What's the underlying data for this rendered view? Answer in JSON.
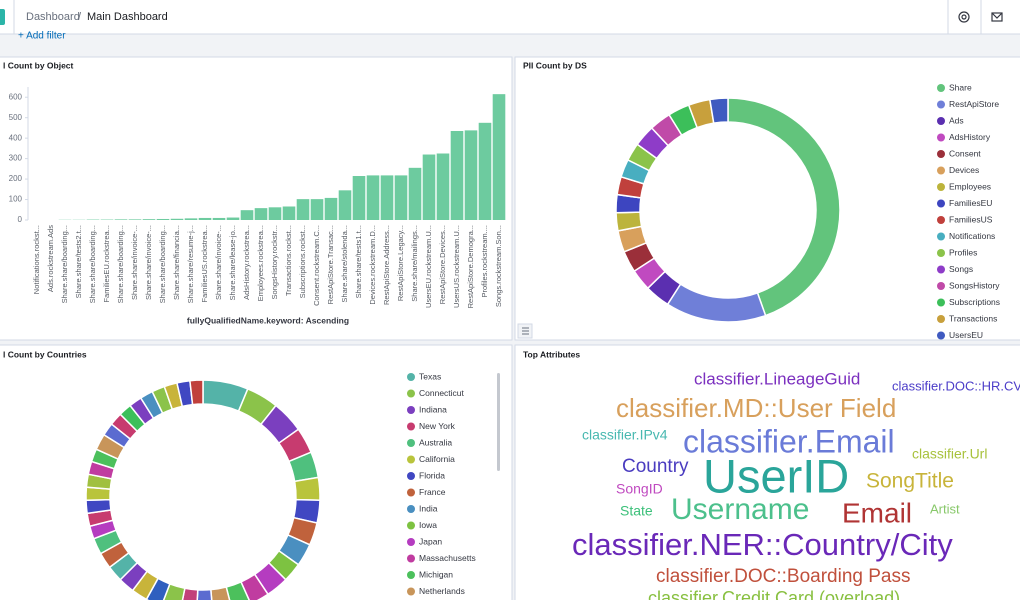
{
  "header": {
    "breadcrumbs": [
      "Dashboard",
      "Main Dashboard"
    ],
    "filter_link": "+ Add filter"
  },
  "chart_data": [
    {
      "type": "bar",
      "title": "l Count by Object",
      "x_label": "fullyQualifiedName.keyword: Ascending",
      "categories": [
        "Notifications.rockst...",
        "Ads.rockstream.Ads",
        "Share.share/boarding...",
        "Share.share/tests2.t...",
        "Share.share/boarding...",
        "FamiliesEU.rockstrea...",
        "Share.share/boarding...",
        "Share.share/invoice-...",
        "Share.share/invoice-...",
        "Share.share/boarding...",
        "Share.share/financia...",
        "Share.share/resume-j...",
        "FamiliesUS.rockstrea...",
        "Share.share/invoice-...",
        "Share.share/lease-jo...",
        "AdsHistory.rockstrea...",
        "Employees.rockstrea...",
        "SongsHistory.rockstr...",
        "Transactions.rockst...",
        "Subscriptions.rockst...",
        "Consent.rockstream.C...",
        "RestApiStore.Transac...",
        "Share.share/stolenda...",
        "Share.share/tests1.t...",
        "Devices.rockstream.D...",
        "RestApiStore.Address...",
        "RestApiStore.Legacy...",
        "Share.share/mailings...",
        "UsersEU.rockstream.U...",
        "RestApiStore.Devices...",
        "UsersUS.rockstream.U...",
        "RestApiStore.Demogra...",
        "Profiles.rockstream....",
        "Songs.rockstream.Son..."
      ],
      "values": [
        0,
        0,
        1,
        1,
        2,
        2,
        3,
        3,
        4,
        5,
        6,
        8,
        10,
        10,
        12,
        48,
        58,
        62,
        66,
        102,
        102,
        108,
        145,
        215,
        218,
        218,
        218,
        255,
        320,
        325,
        435,
        438,
        475,
        615
      ],
      "color": "#6dcb9f",
      "ylim": [
        0,
        650
      ],
      "yticks": [
        0,
        100,
        200,
        300,
        400,
        500,
        600
      ]
    },
    {
      "type": "donut",
      "title": "PII Count by DS",
      "categories": [
        "Share",
        "RestApiStore",
        "Ads",
        "AdsHistory",
        "Consent",
        "Devices",
        "Employees",
        "FamiliesEU",
        "FamiliesUS",
        "Notifications",
        "Profiles",
        "Songs",
        "SongsHistory",
        "Subscriptions",
        "Transactions",
        "UsersEU"
      ],
      "values": [
        43,
        14,
        3.5,
        3,
        3,
        3,
        2.5,
        2.5,
        2.5,
        2.5,
        2.5,
        3,
        3,
        3,
        3,
        2.5
      ],
      "colors": [
        "#62c47c",
        "#6f7fd8",
        "#5b2fb0",
        "#c04ac0",
        "#9b2f3a",
        "#d8a05c",
        "#bcb43c",
        "#3d45c0",
        "#c0403c",
        "#48aec0",
        "#8bc34a",
        "#8e3cc8",
        "#c04aa8",
        "#3cbf5a",
        "#c8a03c",
        "#3f5ac0"
      ]
    },
    {
      "type": "donut",
      "title": "l Count by Countries",
      "categories": [
        "Texas",
        "Connecticut",
        "Indiana",
        "New York",
        "Australia",
        "California",
        "Florida",
        "France",
        "India",
        "Iowa",
        "Japan",
        "Massachusetts",
        "Michigan",
        "Netherlands",
        null,
        null,
        null,
        null,
        null,
        null,
        null,
        null,
        null,
        null,
        null,
        null,
        null,
        null,
        null,
        null,
        null,
        null,
        null,
        null,
        null,
        null,
        null,
        null,
        null,
        null
      ],
      "values": [
        7,
        5,
        5,
        4,
        4,
        3.5,
        3.5,
        3.5,
        3.5,
        3,
        3.5,
        3,
        3,
        3,
        2.5,
        2.5,
        3,
        2.5,
        2.5,
        2.5,
        2.5,
        2.5,
        2.5,
        2,
        2,
        2,
        2,
        2,
        2,
        2,
        2.5,
        2,
        2,
        2,
        2,
        2,
        2,
        2,
        2,
        2
      ],
      "colors": [
        "#54b3a8",
        "#8bc34a",
        "#7b3fbf",
        "#c73b6f",
        "#4fc07e",
        "#b9c43c",
        "#4047c2",
        "#c0623c",
        "#4a8fc0",
        "#7dc241",
        "#b53cc0",
        "#c03ca0",
        "#4cc05c",
        "#c8955a",
        "#5b6bd0",
        "#c2407a",
        "#8bc34a",
        "#2f5fbf",
        "#c8b43a",
        "#7b3fbf",
        "#54b3a8",
        "#c0623c",
        "#4fc07e",
        "#b53cc0",
        "#c73b6f",
        "#4047c2",
        "#b9c43c",
        "#a0c040",
        "#c03ca0",
        "#4cc05c",
        "#c8955a",
        "#5b6bd0",
        "#c73b6f",
        "#3cbf5a",
        "#7b3fbf",
        "#4a8fc0",
        "#8bc34a",
        "#c8b43a",
        "#4047c2",
        "#c0403c"
      ]
    },
    {
      "type": "wordcloud",
      "title": "Top Attributes",
      "categories": [
        "classifier.LineageGuid",
        "classifier.DOC::HR.CV",
        "classifier.MD::User Field",
        "classifier.IPv4",
        "classifier.Email",
        "classifier.Url",
        "Country",
        "UserID",
        "SongTitle",
        "SongID",
        "State",
        "Username",
        "Email",
        "Artist",
        "classifier.NER::Country/City",
        "classifier.DOC::Boarding Pass",
        "classifier.Credit Card (overload)"
      ],
      "values": [
        17,
        13,
        26,
        14,
        32,
        14,
        19,
        47,
        21,
        14,
        14,
        30,
        28,
        13,
        31,
        19,
        18
      ],
      "colors": [
        "#7b2fbf",
        "#4b3cc8",
        "#d8a05c",
        "#48b8b0",
        "#6a7bd8",
        "#a8c23c",
        "#4a3cc0",
        "#2aa59a",
        "#c8b43a",
        "#c04ac0",
        "#3cc07a",
        "#4cc08c",
        "#b03434",
        "#88c86a",
        "#6a28b8",
        "#c0503c",
        "#88c040"
      ]
    }
  ]
}
